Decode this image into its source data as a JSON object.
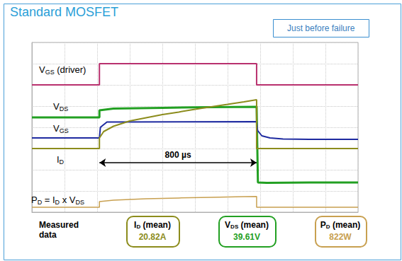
{
  "chart_data": {
    "type": "line",
    "title": "Standard MOSFET",
    "subtitle": "Just before failure",
    "xlim": [
      0,
      10
    ],
    "xticks": [
      0,
      1,
      2,
      3,
      4,
      5,
      6,
      7,
      8,
      9,
      10
    ],
    "ylim": [
      0,
      8
    ],
    "yticks": [
      0,
      1,
      2,
      3,
      4,
      5,
      6,
      7,
      8
    ],
    "grid": true,
    "tick_labels": false,
    "series": [
      {
        "label": [
          "V",
          "GS",
          " (driver)"
        ],
        "color": "#b8306e",
        "x": [
          0,
          2.07,
          2.07,
          6.89,
          6.89,
          10
        ],
        "values": [
          6,
          6,
          7,
          7,
          6,
          6
        ]
      },
      {
        "label": [
          "V",
          "DS"
        ],
        "color": "#22a022",
        "x": [
          0,
          2.07,
          2.07,
          2.5,
          4,
          5.5,
          6.89,
          6.93,
          7.2,
          8.5,
          10
        ],
        "values": [
          4.47,
          4.47,
          4.8,
          4.88,
          4.92,
          4.95,
          4.97,
          1.4,
          1.38,
          1.4,
          1.4
        ]
      },
      {
        "label": [
          "V",
          "GS"
        ],
        "color": "#1e2aa0",
        "x": [
          0,
          2.07,
          2.1,
          2.3,
          6.89,
          6.92,
          7.05,
          7.3,
          7.7,
          8.5,
          10
        ],
        "values": [
          3.5,
          3.5,
          4.0,
          4.25,
          4.27,
          3.85,
          3.6,
          3.5,
          3.45,
          3.43,
          3.43
        ]
      },
      {
        "label": [
          "I",
          "D"
        ],
        "color": "#8c8c1c",
        "x": [
          0,
          2.07,
          2.07,
          2.2,
          2.5,
          3,
          3.5,
          4,
          4.5,
          5,
          5.5,
          6,
          6.5,
          6.89,
          6.89,
          10
        ],
        "values": [
          3,
          3,
          3.5,
          3.8,
          4.05,
          4.3,
          4.45,
          4.6,
          4.72,
          4.85,
          4.97,
          5.08,
          5.2,
          5.3,
          3,
          3
        ]
      },
      {
        "label": [
          "P",
          "D",
          " = I",
          "D",
          " x V",
          "DS"
        ],
        "color": "#c8a050",
        "x": [
          0,
          2.07,
          2.07,
          2.5,
          3.5,
          4.5,
          5.5,
          6.5,
          6.89,
          6.89,
          10
        ],
        "values": [
          0.23,
          0.23,
          0.5,
          0.57,
          0.63,
          0.67,
          0.7,
          0.73,
          0.74,
          0.23,
          0.23
        ]
      }
    ],
    "annotations": [
      {
        "text": "800 µs",
        "x": [
          2.07,
          6.89
        ],
        "y": 2.33
      }
    ],
    "measured_title": [
      "Measured",
      "data"
    ],
    "measured": [
      {
        "label": [
          "I",
          "D",
          " (mean)"
        ],
        "value": "20.82A",
        "color": "#8c8c1c"
      },
      {
        "label": [
          "V",
          "DS",
          " (mean)"
        ],
        "value": "39.61V",
        "color": "#22a022"
      },
      {
        "label": [
          "P",
          "D",
          " (mean)"
        ],
        "value": "822W",
        "color": "#c8a050"
      }
    ]
  }
}
